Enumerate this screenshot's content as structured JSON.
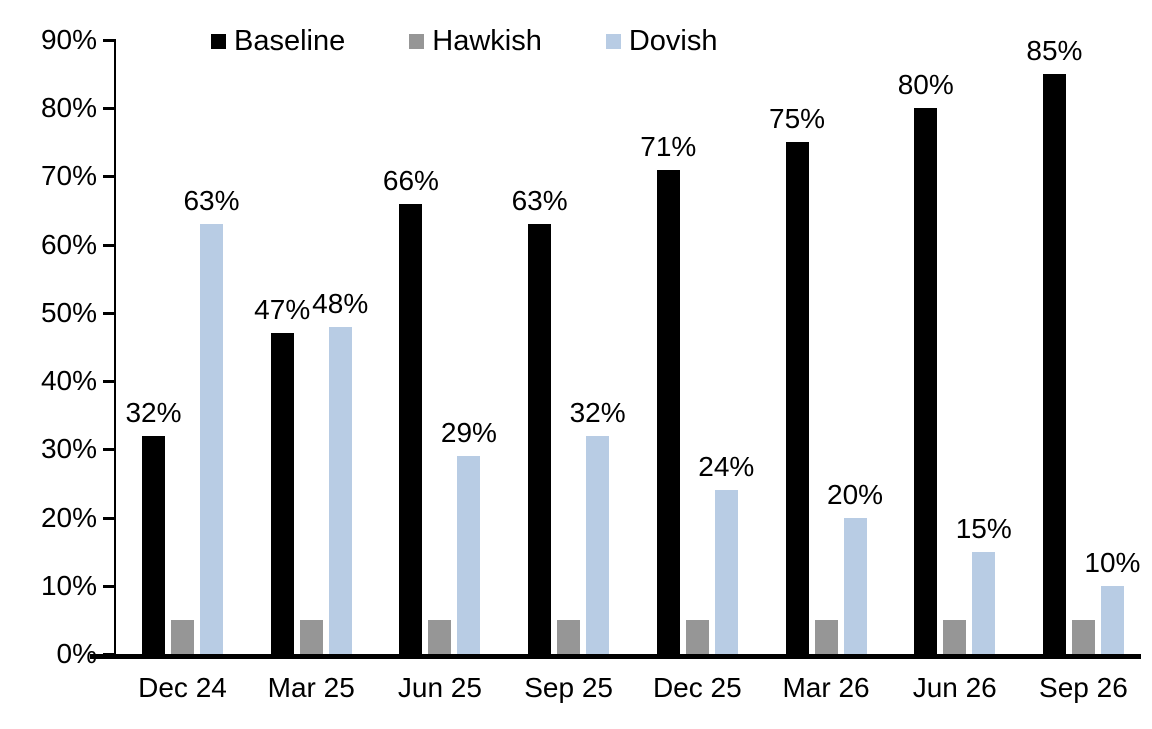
{
  "chart_data": {
    "type": "bar",
    "title": "",
    "xlabel": "",
    "ylabel": "",
    "categories": [
      "Dec 24",
      "Mar 25",
      "Jun 25",
      "Sep 25",
      "Dec 25",
      "Mar 26",
      "Jun 26",
      "Sep 26"
    ],
    "series": [
      {
        "name": "Baseline",
        "color": "#000000",
        "values": [
          32,
          47,
          66,
          63,
          71,
          75,
          80,
          85
        ],
        "labels": [
          "32%",
          "47%",
          "66%",
          "63%",
          "71%",
          "75%",
          "80%",
          "85%"
        ]
      },
      {
        "name": "Hawkish",
        "color": "#969696",
        "values": [
          5,
          5,
          5,
          5,
          5,
          5,
          5,
          5
        ],
        "labels": [
          "",
          "",
          "",
          "",
          "",
          "",
          "",
          ""
        ]
      },
      {
        "name": "Dovish",
        "color": "#b8cce4",
        "values": [
          63,
          48,
          29,
          32,
          24,
          20,
          15,
          10
        ],
        "labels": [
          "63%",
          "48%",
          "29%",
          "32%",
          "24%",
          "20%",
          "15%",
          "10%"
        ]
      }
    ],
    "ylim": [
      0,
      90
    ],
    "ytick_step": 10,
    "ytick_labels": [
      "0%",
      "10%",
      "20%",
      "30%",
      "40%",
      "50%",
      "60%",
      "70%",
      "80%",
      "90%"
    ],
    "grid": false,
    "legend_position": "top-inside",
    "axis_color": "#000000",
    "label_color": "#000000"
  }
}
